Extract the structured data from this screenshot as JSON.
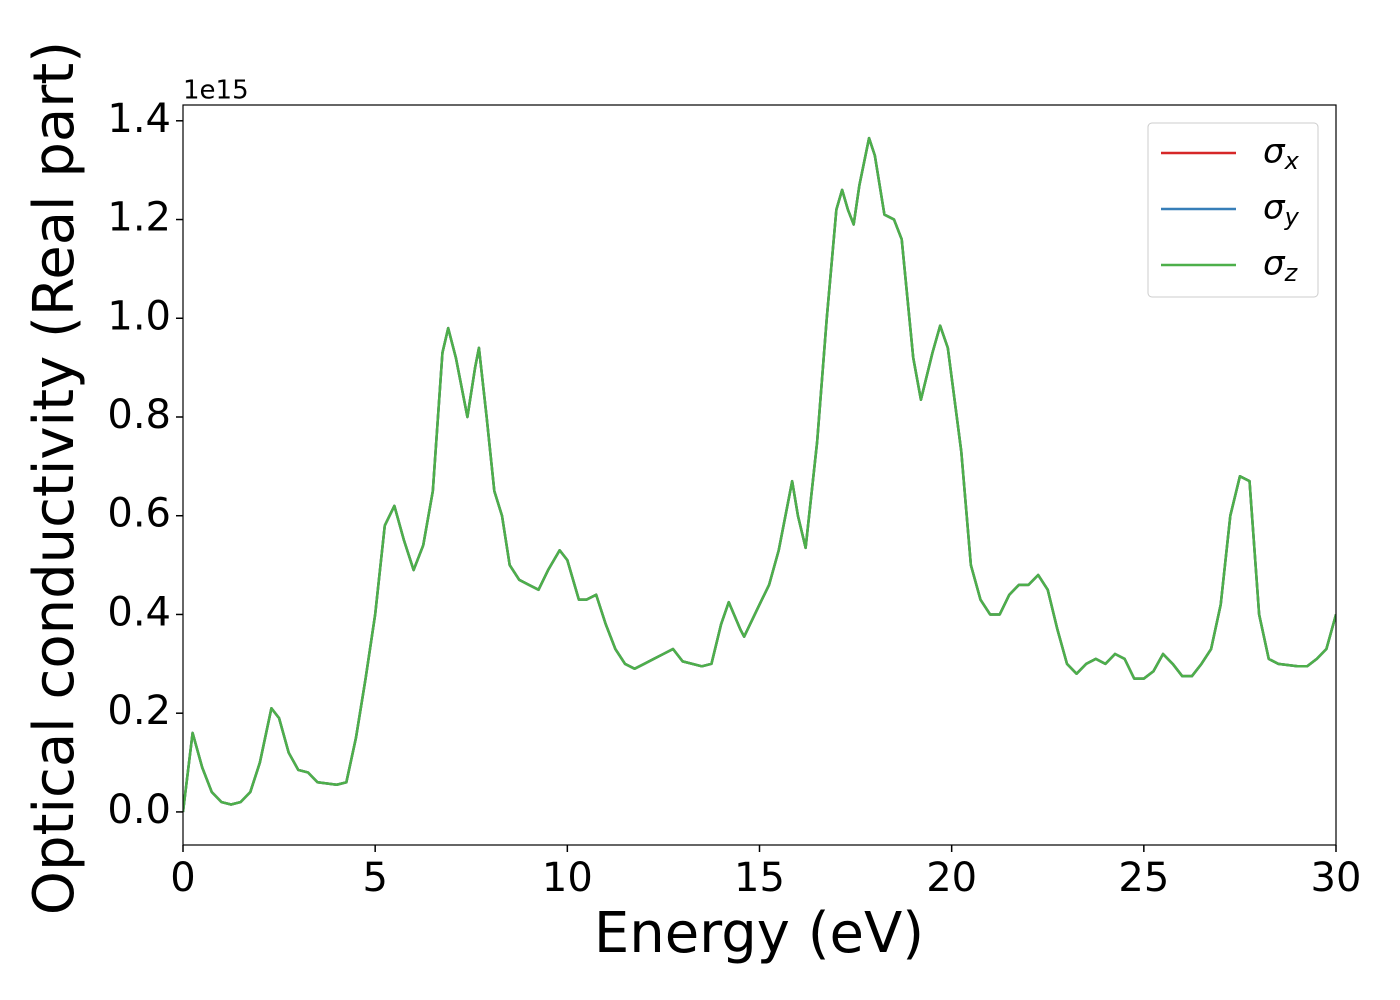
{
  "chart_data": {
    "type": "line",
    "xlabel": "Energy (eV)",
    "ylabel": "Optical conductivity (Real part)",
    "y_offset_text": "1e15",
    "x": [
      0,
      0.25,
      0.5,
      0.75,
      1.0,
      1.25,
      1.5,
      1.75,
      2.0,
      2.3,
      2.5,
      2.75,
      3.0,
      3.25,
      3.5,
      4.0,
      4.25,
      4.5,
      4.75,
      5.0,
      5.25,
      5.5,
      5.75,
      6.0,
      6.25,
      6.5,
      6.75,
      6.9,
      7.1,
      7.4,
      7.6,
      7.7,
      7.9,
      8.1,
      8.3,
      8.5,
      8.75,
      9.0,
      9.25,
      9.5,
      9.8,
      10.0,
      10.3,
      10.5,
      10.75,
      11.0,
      11.25,
      11.5,
      11.75,
      12.0,
      12.25,
      12.5,
      12.75,
      13.0,
      13.5,
      13.75,
      14.0,
      14.2,
      14.5,
      14.6,
      15.0,
      15.25,
      15.5,
      15.75,
      15.85,
      16.0,
      16.2,
      16.5,
      16.75,
      17.0,
      17.15,
      17.3,
      17.45,
      17.6,
      17.85,
      18.0,
      18.25,
      18.5,
      18.7,
      19.0,
      19.2,
      19.5,
      19.7,
      19.9,
      20.25,
      20.5,
      20.75,
      21.0,
      21.25,
      21.5,
      21.75,
      22.0,
      22.25,
      22.5,
      22.75,
      23.0,
      23.25,
      23.5,
      23.75,
      24.0,
      24.25,
      24.5,
      24.75,
      25.0,
      25.25,
      25.5,
      25.75,
      26.0,
      26.25,
      26.5,
      26.75,
      27.0,
      27.25,
      27.5,
      27.75,
      28.0,
      28.25,
      28.5,
      29.0,
      29.25,
      29.5,
      29.75,
      30.0
    ],
    "series": [
      {
        "name": "σx",
        "color": "#d62728",
        "values": [
          0.0,
          0.16,
          0.09,
          0.04,
          0.02,
          0.015,
          0.02,
          0.04,
          0.1,
          0.21,
          0.19,
          0.12,
          0.085,
          0.08,
          0.06,
          0.055,
          0.06,
          0.15,
          0.27,
          0.4,
          0.58,
          0.62,
          0.55,
          0.49,
          0.54,
          0.65,
          0.93,
          0.98,
          0.92,
          0.8,
          0.9,
          0.94,
          0.8,
          0.65,
          0.6,
          0.5,
          0.47,
          0.46,
          0.45,
          0.49,
          0.53,
          0.51,
          0.43,
          0.43,
          0.44,
          0.38,
          0.33,
          0.3,
          0.29,
          0.3,
          0.31,
          0.32,
          0.33,
          0.305,
          0.295,
          0.3,
          0.38,
          0.425,
          0.37,
          0.355,
          0.42,
          0.46,
          0.53,
          0.63,
          0.67,
          0.6,
          0.535,
          0.75,
          1.0,
          1.22,
          1.26,
          1.22,
          1.19,
          1.27,
          1.365,
          1.33,
          1.21,
          1.2,
          1.16,
          0.92,
          0.835,
          0.93,
          0.985,
          0.94,
          0.73,
          0.5,
          0.43,
          0.4,
          0.4,
          0.44,
          0.46,
          0.46,
          0.48,
          0.45,
          0.37,
          0.3,
          0.28,
          0.3,
          0.31,
          0.3,
          0.32,
          0.31,
          0.27,
          0.27,
          0.285,
          0.32,
          0.3,
          0.275,
          0.275,
          0.3,
          0.33,
          0.42,
          0.6,
          0.68,
          0.67,
          0.4,
          0.31,
          0.3,
          0.295,
          0.295,
          0.31,
          0.33,
          0.4
        ]
      },
      {
        "name": "σy",
        "color": "#377eb8",
        "values": [
          0.0,
          0.16,
          0.09,
          0.04,
          0.02,
          0.015,
          0.02,
          0.04,
          0.1,
          0.21,
          0.19,
          0.12,
          0.085,
          0.08,
          0.06,
          0.055,
          0.06,
          0.15,
          0.27,
          0.4,
          0.58,
          0.62,
          0.55,
          0.49,
          0.54,
          0.65,
          0.93,
          0.98,
          0.92,
          0.8,
          0.9,
          0.94,
          0.8,
          0.65,
          0.6,
          0.5,
          0.47,
          0.46,
          0.45,
          0.49,
          0.53,
          0.51,
          0.43,
          0.43,
          0.44,
          0.38,
          0.33,
          0.3,
          0.29,
          0.3,
          0.31,
          0.32,
          0.33,
          0.305,
          0.295,
          0.3,
          0.38,
          0.425,
          0.37,
          0.355,
          0.42,
          0.46,
          0.53,
          0.63,
          0.67,
          0.6,
          0.535,
          0.75,
          1.0,
          1.22,
          1.26,
          1.22,
          1.19,
          1.27,
          1.365,
          1.33,
          1.21,
          1.2,
          1.16,
          0.92,
          0.835,
          0.93,
          0.985,
          0.94,
          0.73,
          0.5,
          0.43,
          0.4,
          0.4,
          0.44,
          0.46,
          0.46,
          0.48,
          0.45,
          0.37,
          0.3,
          0.28,
          0.3,
          0.31,
          0.3,
          0.32,
          0.31,
          0.27,
          0.27,
          0.285,
          0.32,
          0.3,
          0.275,
          0.275,
          0.3,
          0.33,
          0.42,
          0.6,
          0.68,
          0.67,
          0.4,
          0.31,
          0.3,
          0.295,
          0.295,
          0.31,
          0.33,
          0.4
        ]
      },
      {
        "name": "σz",
        "color": "#4daf4a",
        "values": [
          0.0,
          0.16,
          0.09,
          0.04,
          0.02,
          0.015,
          0.02,
          0.04,
          0.1,
          0.21,
          0.19,
          0.12,
          0.085,
          0.08,
          0.06,
          0.055,
          0.06,
          0.15,
          0.27,
          0.4,
          0.58,
          0.62,
          0.55,
          0.49,
          0.54,
          0.65,
          0.93,
          0.98,
          0.92,
          0.8,
          0.9,
          0.94,
          0.8,
          0.65,
          0.6,
          0.5,
          0.47,
          0.46,
          0.45,
          0.49,
          0.53,
          0.51,
          0.43,
          0.43,
          0.44,
          0.38,
          0.33,
          0.3,
          0.29,
          0.3,
          0.31,
          0.32,
          0.33,
          0.305,
          0.295,
          0.3,
          0.38,
          0.425,
          0.37,
          0.355,
          0.42,
          0.46,
          0.53,
          0.63,
          0.67,
          0.6,
          0.535,
          0.75,
          1.0,
          1.22,
          1.26,
          1.22,
          1.19,
          1.27,
          1.365,
          1.33,
          1.21,
          1.2,
          1.16,
          0.92,
          0.835,
          0.93,
          0.985,
          0.94,
          0.73,
          0.5,
          0.43,
          0.4,
          0.4,
          0.44,
          0.46,
          0.46,
          0.48,
          0.45,
          0.37,
          0.3,
          0.28,
          0.3,
          0.31,
          0.3,
          0.32,
          0.31,
          0.27,
          0.27,
          0.285,
          0.32,
          0.3,
          0.275,
          0.275,
          0.3,
          0.33,
          0.42,
          0.6,
          0.68,
          0.67,
          0.4,
          0.31,
          0.3,
          0.295,
          0.295,
          0.31,
          0.33,
          0.4
        ]
      }
    ],
    "xlim": [
      0,
      30
    ],
    "xticks": [
      0,
      5,
      10,
      15,
      20,
      25,
      30
    ],
    "ylim": [
      -0.067,
      1.432
    ],
    "yticks": [
      {
        "value": 0,
        "label": "0.0"
      },
      0.2,
      0.4,
      0.6,
      0.8,
      {
        "value": 1,
        "label": "1.0"
      },
      1.2,
      1.4
    ],
    "grid": false,
    "legend": "upper right"
  }
}
